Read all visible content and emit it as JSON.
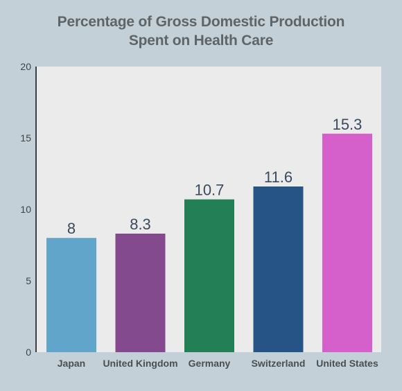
{
  "chart_data": {
    "type": "bar",
    "title_lines": [
      "Percentage of Gross Domestic Production",
      "Spent on Health Care"
    ],
    "xlabel": "",
    "ylabel": "",
    "categories": [
      "Japan",
      "United Kingdom",
      "Germany",
      "Switzerland",
      "United States"
    ],
    "values": [
      8,
      8.3,
      10.7,
      11.6,
      15.3
    ],
    "value_labels": [
      "8",
      "8.3",
      "10.7",
      "11.6",
      "15.3"
    ],
    "bar_colors": [
      "#62a5cb",
      "#834a8d",
      "#238056",
      "#265486",
      "#d55fcb"
    ],
    "ylim": [
      0,
      20
    ],
    "yticks": [
      0,
      5,
      10,
      15,
      20
    ],
    "grid": false,
    "legend": "none",
    "plot_background": "#ebebeb",
    "page_background": "#c3d0d7"
  }
}
